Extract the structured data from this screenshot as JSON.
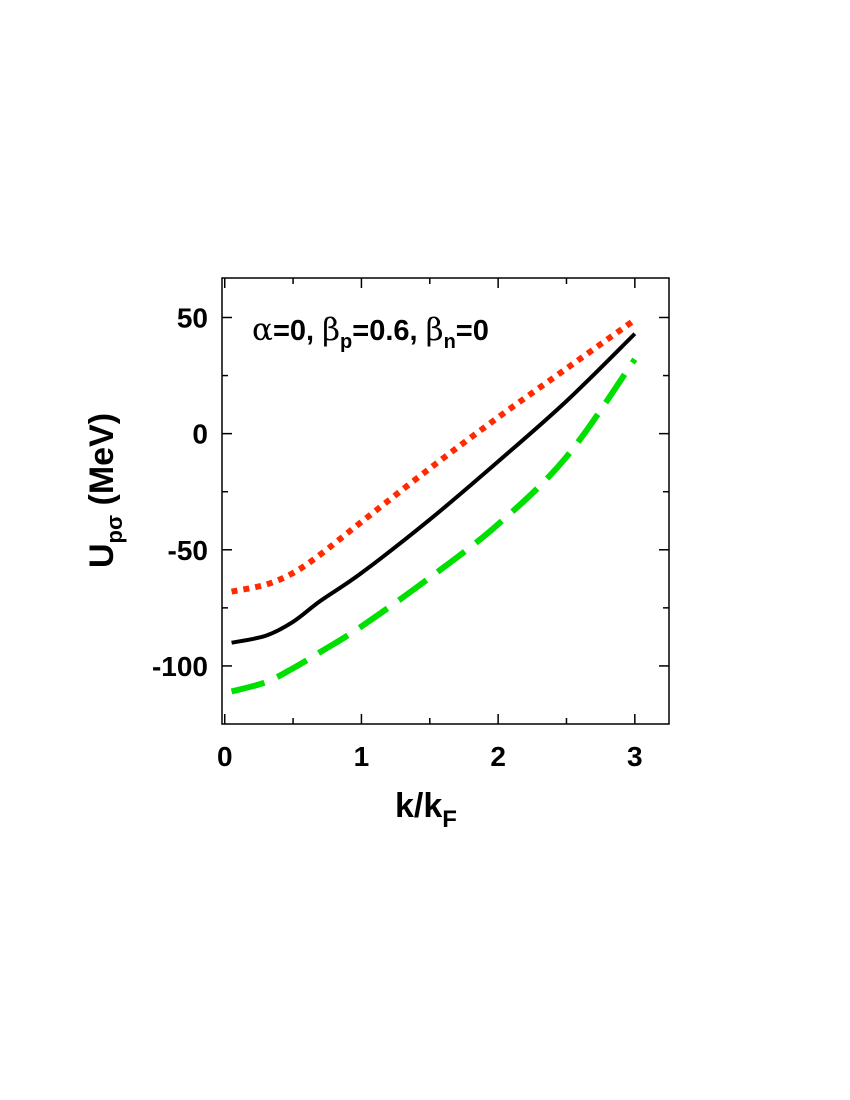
{
  "chart_data": {
    "type": "line",
    "xlabel": {
      "main": "k/k",
      "sub": "F"
    },
    "ylabel": {
      "main": "U",
      "sub": "pσ",
      "rest": " (MeV)"
    },
    "annotation": {
      "alpha": "α",
      "alpha_rest": "=0, ",
      "beta_p": "β",
      "beta_p_sub": "p",
      "beta_p_rest": "=0.6, ",
      "beta_n": "β",
      "beta_n_sub": "n",
      "beta_n_rest": "=0"
    },
    "xlim": [
      -0.02,
      3.25
    ],
    "ylim": [
      -125,
      67
    ],
    "xticks": [
      0,
      1,
      2,
      3
    ],
    "xtick_labels": [
      "0",
      "1",
      "2",
      "3"
    ],
    "yticks": [
      -100,
      -50,
      0,
      50
    ],
    "ytick_labels": [
      "-100",
      "-50",
      "0",
      "50"
    ],
    "x_minor": [
      0.5,
      1.5,
      2.5
    ],
    "y_minor": [
      -75,
      -25,
      25
    ],
    "grid": false,
    "series": [
      {
        "style": "dotted",
        "color": "#ff2a00",
        "x": [
          0.05,
          0.3,
          0.5,
          0.7,
          1.0,
          1.5,
          2.0,
          2.5,
          3.0
        ],
        "y": [
          -68,
          -65,
          -60,
          -52,
          -38,
          -15,
          7,
          28,
          49
        ]
      },
      {
        "style": "solid",
        "color": "#000000",
        "x": [
          0.05,
          0.3,
          0.5,
          0.7,
          1.0,
          1.5,
          2.0,
          2.5,
          3.0
        ],
        "y": [
          -90,
          -87,
          -81,
          -72,
          -60,
          -37,
          -12,
          14,
          43
        ]
      },
      {
        "style": "dashed",
        "color": "#00e000",
        "x": [
          0.05,
          0.3,
          0.5,
          0.7,
          1.0,
          1.5,
          2.0,
          2.5,
          3.0
        ],
        "y": [
          -111,
          -107,
          -101,
          -94,
          -83,
          -62,
          -39,
          -10,
          32
        ]
      }
    ]
  }
}
